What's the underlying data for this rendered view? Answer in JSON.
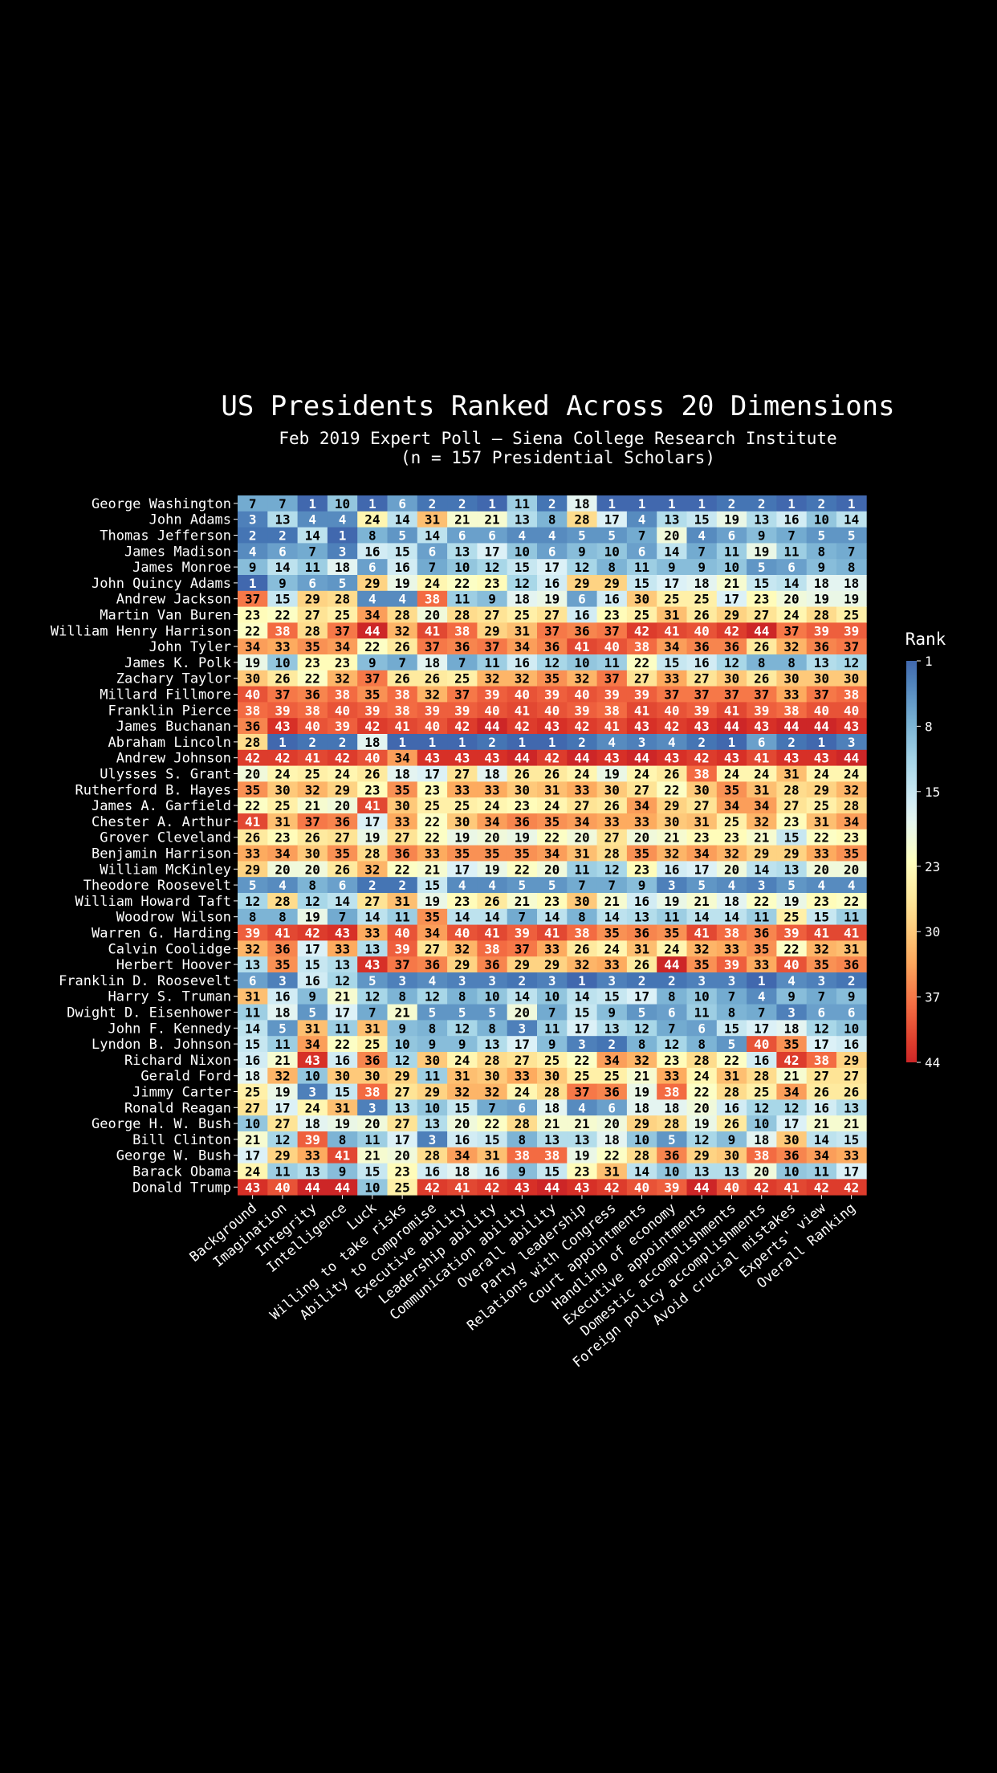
{
  "chart_data": {
    "type": "heatmap",
    "title": "US Presidents Ranked Across 20 Dimensions",
    "subtitle_line1": "Feb 2019 Expert Poll – Siena College Research Institute",
    "subtitle_line2": "(n = 157 Presidential Scholars)",
    "colorbar_label": "Rank",
    "colorbar_ticks": [
      1,
      8,
      15,
      23,
      30,
      37,
      44
    ],
    "value_range": [
      1,
      44
    ],
    "colormap": "RdYlBu reversed (1 = blue, 44 = red)",
    "columns": [
      "Background",
      "Imagination",
      "Integrity",
      "Intelligence",
      "Luck",
      "Willing to take risks",
      "Ability to compromise",
      "Executive ability",
      "Leadership ability",
      "Communication ability",
      "Overall ability",
      "Party leadership",
      "Relations with Congress",
      "Court appointments",
      "Handling of economy",
      "Executive appointments",
      "Domestic accomplishments",
      "Foreign policy accomplishments",
      "Avoid crucial mistakes",
      "Experts' view",
      "Overall Ranking"
    ],
    "rows": [
      {
        "name": "George Washington",
        "values": [
          7,
          7,
          1,
          10,
          1,
          6,
          2,
          2,
          1,
          11,
          2,
          18,
          1,
          1,
          1,
          1,
          2,
          2,
          1,
          2,
          1
        ]
      },
      {
        "name": "John Adams",
        "values": [
          3,
          13,
          4,
          4,
          24,
          14,
          31,
          21,
          21,
          13,
          8,
          28,
          17,
          4,
          13,
          15,
          19,
          13,
          16,
          10,
          14
        ]
      },
      {
        "name": "Thomas Jefferson",
        "values": [
          2,
          2,
          14,
          1,
          8,
          5,
          14,
          6,
          6,
          4,
          4,
          5,
          5,
          7,
          20,
          4,
          6,
          9,
          7,
          5,
          5
        ]
      },
      {
        "name": "James Madison",
        "values": [
          4,
          6,
          7,
          3,
          16,
          15,
          6,
          13,
          17,
          10,
          6,
          9,
          10,
          6,
          14,
          7,
          11,
          19,
          11,
          8,
          7
        ]
      },
      {
        "name": "James Monroe",
        "values": [
          9,
          14,
          11,
          18,
          6,
          16,
          7,
          10,
          12,
          15,
          17,
          12,
          8,
          11,
          9,
          9,
          10,
          5,
          6,
          9,
          8
        ]
      },
      {
        "name": "John Quincy Adams",
        "values": [
          1,
          9,
          6,
          5,
          29,
          19,
          24,
          22,
          23,
          12,
          16,
          29,
          29,
          15,
          17,
          18,
          21,
          15,
          14,
          18,
          18
        ]
      },
      {
        "name": "Andrew Jackson",
        "values": [
          37,
          15,
          29,
          28,
          4,
          4,
          38,
          11,
          9,
          18,
          19,
          6,
          16,
          30,
          25,
          25,
          17,
          23,
          20,
          19,
          19
        ]
      },
      {
        "name": "Martin Van Buren",
        "values": [
          23,
          22,
          27,
          25,
          34,
          28,
          20,
          28,
          27,
          25,
          27,
          16,
          23,
          25,
          31,
          26,
          29,
          27,
          24,
          28,
          25
        ]
      },
      {
        "name": "William Henry Harrison",
        "values": [
          22,
          38,
          28,
          37,
          44,
          32,
          41,
          38,
          29,
          31,
          37,
          36,
          37,
          42,
          41,
          40,
          42,
          44,
          37,
          39,
          39
        ]
      },
      {
        "name": "John Tyler",
        "values": [
          34,
          33,
          35,
          34,
          22,
          26,
          37,
          36,
          37,
          34,
          36,
          41,
          40,
          38,
          34,
          36,
          36,
          26,
          32,
          36,
          37
        ]
      },
      {
        "name": "James K. Polk",
        "values": [
          19,
          10,
          23,
          23,
          9,
          7,
          18,
          7,
          11,
          16,
          12,
          10,
          11,
          22,
          15,
          16,
          12,
          8,
          8,
          13,
          12
        ]
      },
      {
        "name": "Zachary Taylor",
        "values": [
          30,
          26,
          22,
          32,
          37,
          26,
          26,
          25,
          32,
          32,
          35,
          32,
          37,
          27,
          33,
          27,
          30,
          26,
          30,
          30,
          30
        ]
      },
      {
        "name": "Millard Fillmore",
        "values": [
          40,
          37,
          36,
          38,
          35,
          38,
          32,
          37,
          39,
          40,
          39,
          40,
          39,
          39,
          37,
          37,
          37,
          37,
          33,
          37,
          38
        ]
      },
      {
        "name": "Franklin Pierce",
        "values": [
          38,
          39,
          38,
          40,
          39,
          38,
          39,
          39,
          40,
          41,
          40,
          39,
          38,
          41,
          40,
          39,
          41,
          39,
          38,
          40,
          40
        ]
      },
      {
        "name": "James Buchanan",
        "values": [
          36,
          43,
          40,
          39,
          42,
          41,
          40,
          42,
          44,
          42,
          43,
          42,
          41,
          43,
          42,
          43,
          44,
          43,
          44,
          44,
          43
        ]
      },
      {
        "name": "Abraham Lincoln",
        "values": [
          28,
          1,
          2,
          2,
          18,
          1,
          1,
          1,
          2,
          1,
          1,
          2,
          4,
          3,
          4,
          2,
          1,
          6,
          2,
          1,
          3
        ]
      },
      {
        "name": "Andrew Johnson",
        "values": [
          42,
          42,
          41,
          42,
          40,
          34,
          43,
          43,
          43,
          44,
          42,
          44,
          43,
          44,
          43,
          42,
          43,
          41,
          43,
          43,
          44
        ]
      },
      {
        "name": "Ulysses S. Grant",
        "values": [
          20,
          24,
          25,
          24,
          26,
          18,
          17,
          27,
          18,
          26,
          26,
          24,
          19,
          24,
          26,
          38,
          24,
          24,
          31,
          24,
          24
        ]
      },
      {
        "name": "Rutherford B. Hayes",
        "values": [
          35,
          30,
          32,
          29,
          23,
          35,
          23,
          33,
          33,
          30,
          31,
          33,
          30,
          27,
          22,
          30,
          35,
          31,
          28,
          29,
          32
        ]
      },
      {
        "name": "James A. Garfield",
        "values": [
          22,
          25,
          21,
          20,
          41,
          30,
          25,
          25,
          24,
          23,
          24,
          27,
          26,
          34,
          29,
          27,
          34,
          34,
          27,
          25,
          28
        ]
      },
      {
        "name": "Chester A. Arthur",
        "values": [
          41,
          31,
          37,
          36,
          17,
          33,
          22,
          30,
          34,
          36,
          35,
          34,
          33,
          33,
          30,
          31,
          25,
          32,
          23,
          31,
          34
        ]
      },
      {
        "name": "Grover Cleveland",
        "values": [
          26,
          23,
          26,
          27,
          19,
          27,
          22,
          19,
          20,
          19,
          22,
          20,
          27,
          20,
          21,
          23,
          23,
          21,
          15,
          22,
          23
        ]
      },
      {
        "name": "Benjamin Harrison",
        "values": [
          33,
          34,
          30,
          35,
          28,
          36,
          33,
          35,
          35,
          35,
          34,
          31,
          28,
          35,
          32,
          34,
          32,
          29,
          29,
          33,
          35
        ]
      },
      {
        "name": "William McKinley",
        "values": [
          29,
          20,
          20,
          26,
          32,
          22,
          21,
          17,
          19,
          22,
          20,
          11,
          12,
          23,
          16,
          17,
          20,
          14,
          13,
          20,
          20
        ]
      },
      {
        "name": "Theodore Roosevelt",
        "values": [
          5,
          4,
          8,
          6,
          2,
          2,
          15,
          4,
          4,
          5,
          5,
          7,
          7,
          9,
          3,
          5,
          4,
          3,
          5,
          4,
          4
        ]
      },
      {
        "name": "William Howard Taft",
        "values": [
          12,
          28,
          12,
          14,
          27,
          31,
          19,
          23,
          26,
          21,
          23,
          30,
          21,
          16,
          19,
          21,
          18,
          22,
          19,
          23,
          22
        ]
      },
      {
        "name": "Woodrow Wilson",
        "values": [
          8,
          8,
          19,
          7,
          14,
          11,
          35,
          14,
          14,
          7,
          14,
          8,
          14,
          13,
          11,
          14,
          14,
          11,
          25,
          15,
          11
        ]
      },
      {
        "name": "Warren G. Harding",
        "values": [
          39,
          41,
          42,
          43,
          33,
          40,
          34,
          40,
          41,
          39,
          41,
          38,
          35,
          36,
          35,
          41,
          38,
          36,
          39,
          41,
          41
        ]
      },
      {
        "name": "Calvin Coolidge",
        "values": [
          32,
          36,
          17,
          33,
          13,
          39,
          27,
          32,
          38,
          37,
          33,
          26,
          24,
          31,
          24,
          32,
          33,
          35,
          22,
          32,
          31
        ]
      },
      {
        "name": "Herbert Hoover",
        "values": [
          13,
          35,
          15,
          13,
          43,
          37,
          36,
          29,
          36,
          29,
          29,
          32,
          33,
          26,
          44,
          35,
          39,
          33,
          40,
          35,
          36
        ]
      },
      {
        "name": "Franklin D. Roosevelt",
        "values": [
          6,
          3,
          16,
          12,
          5,
          3,
          4,
          3,
          3,
          2,
          3,
          1,
          3,
          2,
          2,
          3,
          3,
          1,
          4,
          3,
          2
        ]
      },
      {
        "name": "Harry S. Truman",
        "values": [
          31,
          16,
          9,
          21,
          12,
          8,
          12,
          8,
          10,
          14,
          10,
          14,
          15,
          17,
          8,
          10,
          7,
          4,
          9,
          7,
          9
        ]
      },
      {
        "name": "Dwight D. Eisenhower",
        "values": [
          11,
          18,
          5,
          17,
          7,
          21,
          5,
          5,
          5,
          20,
          7,
          15,
          9,
          5,
          6,
          11,
          8,
          7,
          3,
          6,
          6
        ]
      },
      {
        "name": "John F. Kennedy",
        "values": [
          14,
          5,
          31,
          11,
          31,
          9,
          8,
          12,
          8,
          3,
          11,
          17,
          13,
          12,
          7,
          6,
          15,
          17,
          18,
          12,
          10
        ]
      },
      {
        "name": "Lyndon B. Johnson",
        "values": [
          15,
          11,
          34,
          22,
          25,
          10,
          9,
          9,
          13,
          17,
          9,
          3,
          2,
          8,
          12,
          8,
          5,
          40,
          35,
          17,
          16
        ]
      },
      {
        "name": "Richard Nixon",
        "values": [
          16,
          21,
          43,
          16,
          36,
          12,
          30,
          24,
          28,
          27,
          25,
          22,
          34,
          32,
          23,
          28,
          22,
          16,
          42,
          38,
          29
        ]
      },
      {
        "name": "Gerald Ford",
        "values": [
          18,
          32,
          10,
          30,
          30,
          29,
          11,
          31,
          30,
          33,
          30,
          25,
          25,
          21,
          33,
          24,
          31,
          28,
          21,
          27,
          27
        ]
      },
      {
        "name": "Jimmy Carter",
        "values": [
          25,
          19,
          3,
          15,
          38,
          27,
          29,
          32,
          32,
          24,
          28,
          37,
          36,
          19,
          38,
          22,
          28,
          25,
          34,
          26,
          26
        ]
      },
      {
        "name": "Ronald Reagan",
        "values": [
          27,
          17,
          24,
          31,
          3,
          13,
          10,
          15,
          7,
          6,
          18,
          4,
          6,
          18,
          18,
          20,
          16,
          12,
          12,
          16,
          13
        ]
      },
      {
        "name": "George H. W. Bush",
        "values": [
          10,
          27,
          18,
          19,
          20,
          27,
          13,
          20,
          22,
          28,
          21,
          21,
          20,
          29,
          28,
          19,
          26,
          10,
          17,
          21,
          21
        ]
      },
      {
        "name": "Bill Clinton",
        "values": [
          21,
          12,
          39,
          8,
          11,
          17,
          3,
          16,
          15,
          8,
          13,
          13,
          18,
          10,
          5,
          12,
          9,
          18,
          30,
          14,
          15
        ]
      },
      {
        "name": "George W. Bush",
        "values": [
          17,
          29,
          33,
          41,
          21,
          20,
          28,
          34,
          31,
          38,
          38,
          19,
          22,
          28,
          36,
          29,
          30,
          38,
          36,
          34,
          33
        ]
      },
      {
        "name": "Barack Obama",
        "values": [
          24,
          11,
          13,
          9,
          15,
          23,
          16,
          18,
          16,
          9,
          15,
          23,
          31,
          14,
          10,
          13,
          13,
          20,
          10,
          11,
          17
        ]
      },
      {
        "name": "Donald Trump",
        "values": [
          43,
          40,
          44,
          44,
          10,
          25,
          42,
          41,
          42,
          43,
          44,
          43,
          42,
          40,
          39,
          44,
          40,
          42,
          41,
          42,
          42
        ]
      }
    ]
  }
}
